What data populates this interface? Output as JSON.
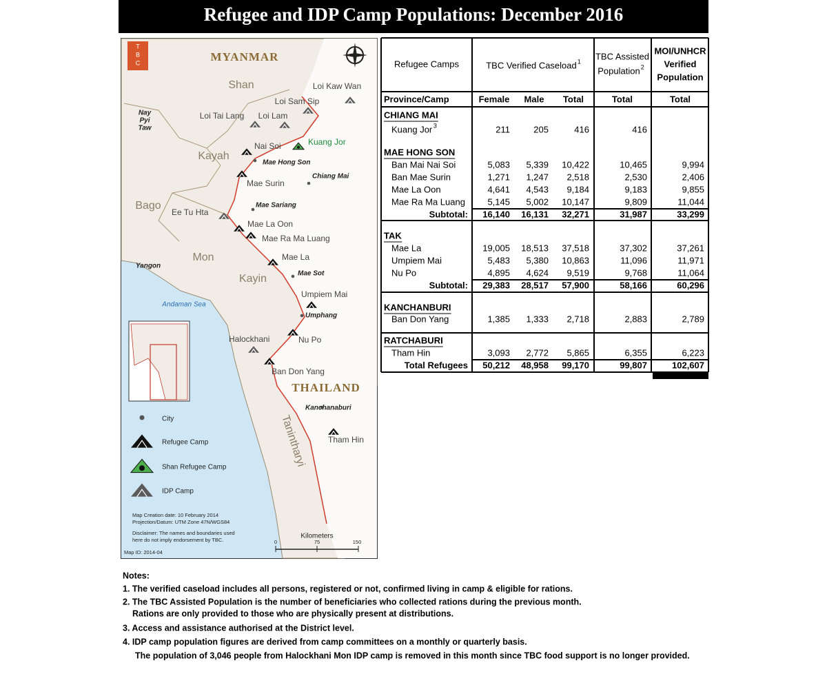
{
  "header": {
    "title": "Refugee and IDP Camp Populations: December 2016"
  },
  "map": {
    "logo": [
      "T",
      "B",
      "C"
    ],
    "labels": [
      "MYANMAR",
      "Shan",
      "Kayah",
      "Bago",
      "Mon",
      "Kayin",
      "THAILAND",
      "Tanintharyi",
      "Andaman Sea",
      "Nay",
      "Pyi",
      "Taw",
      "Yangon",
      "Loi Kaw Wan",
      "Loi Sam Sip",
      "Loi Tai Lang",
      "Loi Lam",
      "Nai Soi",
      "Kuang Jor",
      "Mae Hong Son",
      "Chiang Mai",
      "Mae Surin",
      "Mae Sariang",
      "Ee Tu Hta",
      "Mae La Oon",
      "Mae Ra Ma Luang",
      "Mae La",
      "Mae Sot",
      "Umpiem Mai",
      "Umphang",
      "Halockhani",
      "Nu Po",
      "Ban Don Yang",
      "Kanchanaburi",
      "Tham Hin"
    ],
    "legend": [
      "City",
      "Refugee Camp",
      "Shan Refugee Camp",
      "IDP Camp"
    ],
    "notes": [
      "Map Creation date: 10 February 2014",
      "Projection/Datum: UTM Zone 47N/WGS84",
      "Disclaimer: The names and boundaries used",
      "here do not imply endorsement by TBC.",
      "Map ID: 2014-04"
    ],
    "scale": {
      "title": "Kilometers",
      "ticks": [
        "0",
        "75",
        "150"
      ]
    }
  },
  "table": {
    "header": {
      "camps": "Refugee Camps",
      "caseload": {
        "text": "TBC Verified Caseload",
        "sup": "1"
      },
      "assisted": {
        "lines": [
          "TBC Assisted",
          "Population"
        ],
        "sup": "2"
      },
      "moi": [
        "MOI/UNHCR",
        "Verified",
        "Population"
      ]
    },
    "subheader": [
      "Province/Camp",
      "Female",
      "Male",
      "Total",
      "Total",
      "Total"
    ],
    "sections": [
      {
        "name": "CHIANG MAI",
        "rows": [
          {
            "camp": "Kuang Jor",
            "sup": "3",
            "values": [
              "211",
              "205",
              "416",
              "416"
            ]
          }
        ]
      },
      {
        "name": "MAE HONG SON",
        "rows": [
          {
            "camp": "Ban Mai Nai Soi",
            "values": [
              "5,083",
              "5,339",
              "10,422",
              "10,465",
              "9,994"
            ]
          },
          {
            "camp": "Ban Mae Surin",
            "values": [
              "1,271",
              "1,247",
              "2,518",
              "2,530",
              "2,406"
            ]
          },
          {
            "camp": "Mae La Oon",
            "values": [
              "4,641",
              "4,543",
              "9,184",
              "9,183",
              "9,855"
            ]
          },
          {
            "camp": "Mae Ra Ma Luang",
            "values": [
              "5,145",
              "5,002",
              "10,147",
              "9,809",
              "11,044"
            ]
          }
        ],
        "subtotal": {
          "label": "Subtotal:",
          "values": [
            "16,140",
            "16,131",
            "32,271",
            "31,987",
            "33,299"
          ]
        }
      },
      {
        "name": "TAK",
        "rows": [
          {
            "camp": "Mae La",
            "values": [
              "19,005",
              "18,513",
              "37,518",
              "37,302",
              "37,261"
            ]
          },
          {
            "camp": "Umpiem Mai",
            "values": [
              "5,483",
              "5,380",
              "10,863",
              "11,096",
              "11,971"
            ]
          },
          {
            "camp": "Nu Po",
            "values": [
              "4,895",
              "4,624",
              "9,519",
              "9,768",
              "11,064"
            ]
          }
        ],
        "subtotal": {
          "label": "Subtotal:",
          "values": [
            "29,383",
            "28,517",
            "57,900",
            "58,166",
            "60,296"
          ]
        }
      },
      {
        "name": "KANCHANBURI",
        "rows": [
          {
            "camp": "Ban Don Yang",
            "values": [
              "1,385",
              "1,333",
              "2,718",
              "2,883",
              "2,789"
            ]
          }
        ]
      },
      {
        "name": "RATCHABURI",
        "rows": [
          {
            "camp": "Tham Hin",
            "values": [
              "3,093",
              "2,772",
              "5,865",
              "6,355",
              "6,223"
            ]
          }
        ]
      }
    ],
    "total": {
      "label": "Total Refugees",
      "values": [
        "50,212",
        "48,958",
        "99,170",
        "99,807",
        "102,607"
      ]
    }
  },
  "notes": {
    "title": "Notes:",
    "items": [
      [
        "1. The verified caseload includes all persons, registered or not, confirmed living in camp & eligible for rations."
      ],
      [
        "2. The TBC Assisted Population is the number of beneficiaries who collected rations during the previous month.",
        "Rations are only provided to those who are physically present at distributions."
      ],
      [
        "3. Access and assistance authorised at the District level."
      ],
      [
        "4. IDP camp population figures are derived from camp committees on a monthly or quarterly basis.",
        "The population of 3,046 people from Halockhani Mon IDP camp is removed in this month since TBC food support is no longer provided."
      ]
    ]
  }
}
